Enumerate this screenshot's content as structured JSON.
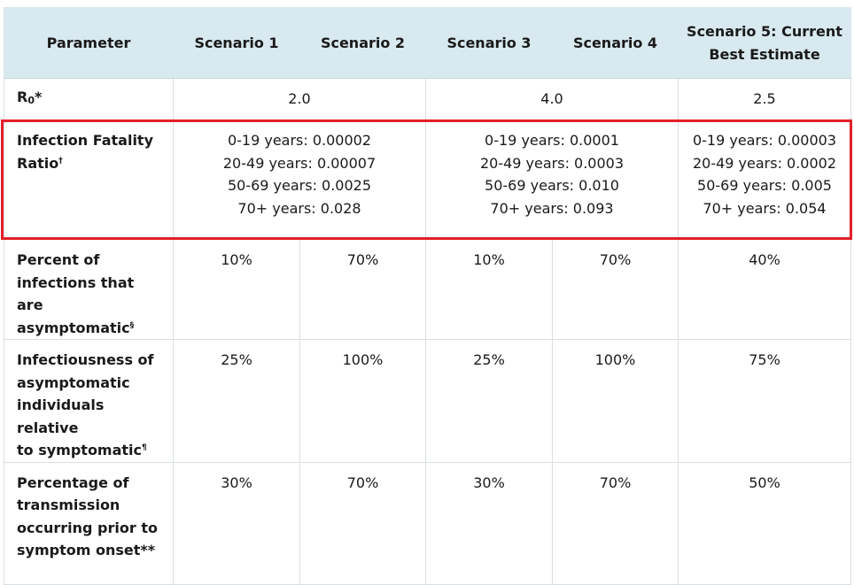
{
  "header": {
    "parameter": "Parameter",
    "scenario1": "Scenario 1",
    "scenario2": "Scenario 2",
    "scenario3": "Scenario 3",
    "scenario4": "Scenario 4",
    "scenario5_line1": "Scenario 5: Current",
    "scenario5_line2": "Best Estimate"
  },
  "rows": {
    "r0": {
      "label_main": "R",
      "label_sub": "0",
      "label_mark": "*",
      "s12": "2.0",
      "s34": "4.0",
      "s5": "2.5"
    },
    "ifr": {
      "label_line1": "Infection Fatality",
      "label_line2": "Ratio",
      "label_mark": "†",
      "s12": [
        "0-19 years: 0.00002",
        "20-49 years: 0.00007",
        "50-69 years: 0.0025",
        "70+ years: 0.028"
      ],
      "s34": [
        "0-19 years: 0.0001",
        "20-49 years: 0.0003",
        "50-69 years: 0.010",
        "70+ years: 0.093"
      ],
      "s5": [
        "0-19 years: 0.00003",
        "20-49 years: 0.0002",
        "50-69 years: 0.005",
        "70+ years: 0.054"
      ]
    },
    "asym": {
      "label_line1": "Percent of",
      "label_line2": "infections that are",
      "label_line3": "asymptomatic",
      "label_mark": "§",
      "values": [
        "10%",
        "70%",
        "10%",
        "70%",
        "40%"
      ]
    },
    "infect": {
      "label_line1": "Infectiousness of",
      "label_line2": "asymptomatic",
      "label_line3": "individuals relative",
      "label_line4": "to symptomatic",
      "label_mark": "¶",
      "values": [
        "25%",
        "100%",
        "25%",
        "100%",
        "75%"
      ]
    },
    "trans": {
      "label_line1": "Percentage of",
      "label_line2": "transmission",
      "label_line3": "occurring prior to",
      "label_line4": "symptom onset",
      "label_mark": "**",
      "values": [
        "30%",
        "70%",
        "30%",
        "70%",
        "50%"
      ]
    }
  },
  "colors": {
    "header_bg": "#d8e9f0",
    "highlight": "#e2202a",
    "grid": "#d9dfe3"
  }
}
